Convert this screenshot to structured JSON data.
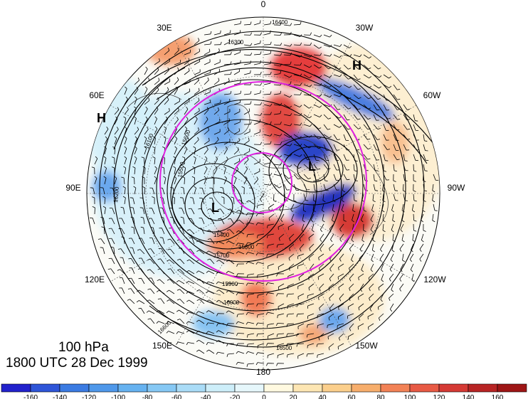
{
  "figure": {
    "level_label": "100 hPa",
    "time_label": "1800 UTC 28 Dec 1999"
  },
  "map": {
    "projection": "north-polar-stereographic",
    "longitude_labels": [
      "0",
      "30W",
      "60W",
      "90W",
      "120W",
      "150W",
      "180",
      "150E",
      "120E",
      "90E",
      "60E",
      "30E"
    ],
    "pressure_systems": [
      {
        "type": "H",
        "label": "H"
      },
      {
        "type": "H",
        "label": "H"
      },
      {
        "type": "L",
        "label": "L"
      },
      {
        "type": "L",
        "label": "L"
      }
    ],
    "height_contour_labels": [
      "15400",
      "15500",
      "15600",
      "15700",
      "15800",
      "15900",
      "16000",
      "16100",
      "16200",
      "16300",
      "16400",
      "16500",
      "16600"
    ],
    "anomaly_ring_color": "#e020e0",
    "contour_color": "#000000",
    "barb_color": "#000000"
  },
  "colorbar": {
    "tick_labels": [
      "-160",
      "-140",
      "-120",
      "-100",
      "-80",
      "-60",
      "-40",
      "-20",
      "0",
      "20",
      "40",
      "60",
      "80",
      "100",
      "120",
      "140",
      "160"
    ],
    "colors": [
      "#2222cc",
      "#2e55d8",
      "#3b7be2",
      "#4f98ea",
      "#66b2f0",
      "#86c8f4",
      "#aadcf7",
      "#cdeef9",
      "#e6f7fb",
      "#fff9e0",
      "#fde6b3",
      "#fbcf8c",
      "#f7ae6c",
      "#f28256",
      "#e85a45",
      "#d53a35",
      "#b82424",
      "#9e1616"
    ]
  },
  "anomaly_fields": [
    {
      "name": "pos",
      "color": "#f59a62"
    },
    {
      "name": "neg",
      "color": "#4f7fe0"
    }
  ]
}
